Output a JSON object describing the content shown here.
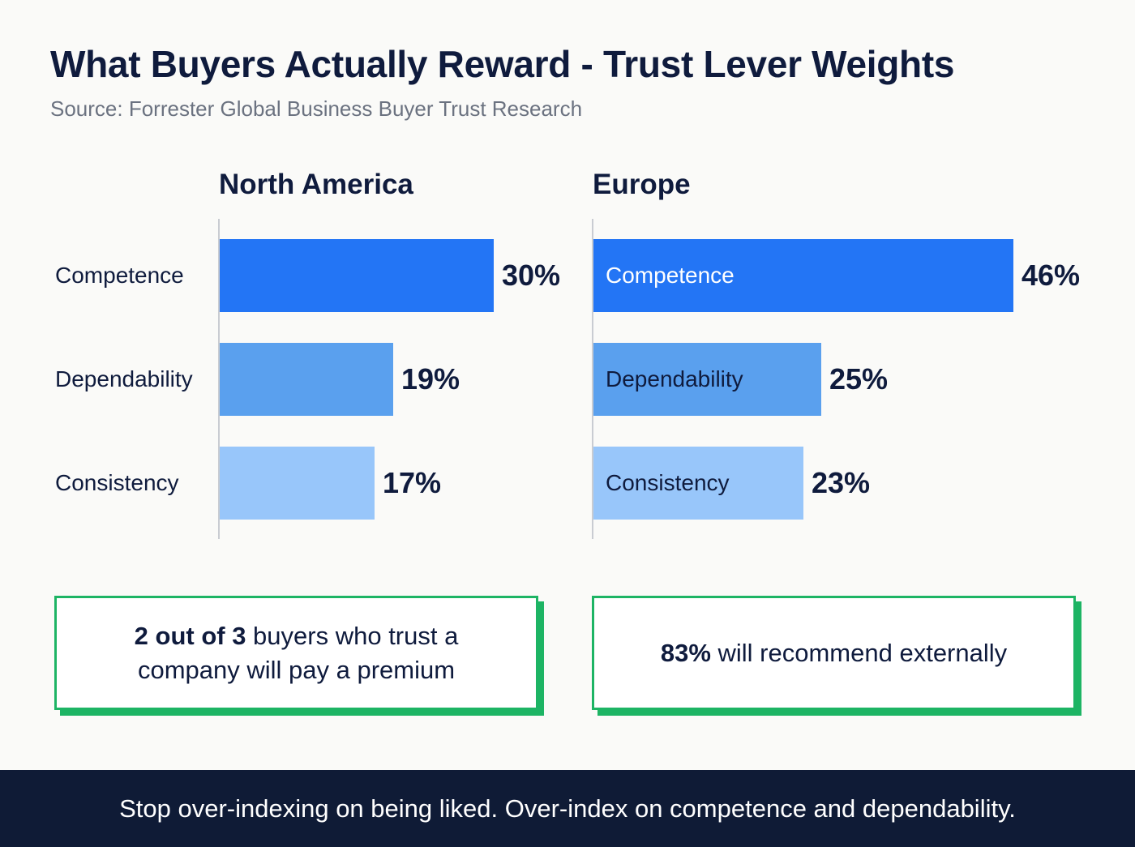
{
  "header": {
    "title": "What Buyers Actually Reward - Trust Lever Weights",
    "subtitle": "Source: Forrester Global Business Buyer Trust Research"
  },
  "colors": {
    "competence": "#2375f5",
    "dependability": "#5aa0ee",
    "consistency": "#98c6fa",
    "callout_border": "#1db464",
    "footer_bg": "#0f1b36"
  },
  "chart_data": [
    {
      "type": "bar",
      "orientation": "horizontal",
      "title": "North America",
      "categories": [
        "Competence",
        "Dependability",
        "Consistency"
      ],
      "values": [
        30,
        19,
        17
      ],
      "value_labels": [
        "30%",
        "19%",
        "17%"
      ],
      "unit": "%",
      "category_label_position": "outside-left"
    },
    {
      "type": "bar",
      "orientation": "horizontal",
      "title": "Europe",
      "categories": [
        "Competence",
        "Dependability",
        "Consistency"
      ],
      "values": [
        46,
        25,
        23
      ],
      "value_labels": [
        "46%",
        "25%",
        "23%"
      ],
      "unit": "%",
      "category_label_position": "inside"
    }
  ],
  "callouts": {
    "left": {
      "bold": "2 out of 3",
      "text": " buyers who trust a company will pay a premium"
    },
    "right": {
      "bold": "83%",
      "text": " will recommend externally"
    }
  },
  "footer": {
    "text": "Stop over-indexing on being liked. Over-index on competence and dependability."
  }
}
